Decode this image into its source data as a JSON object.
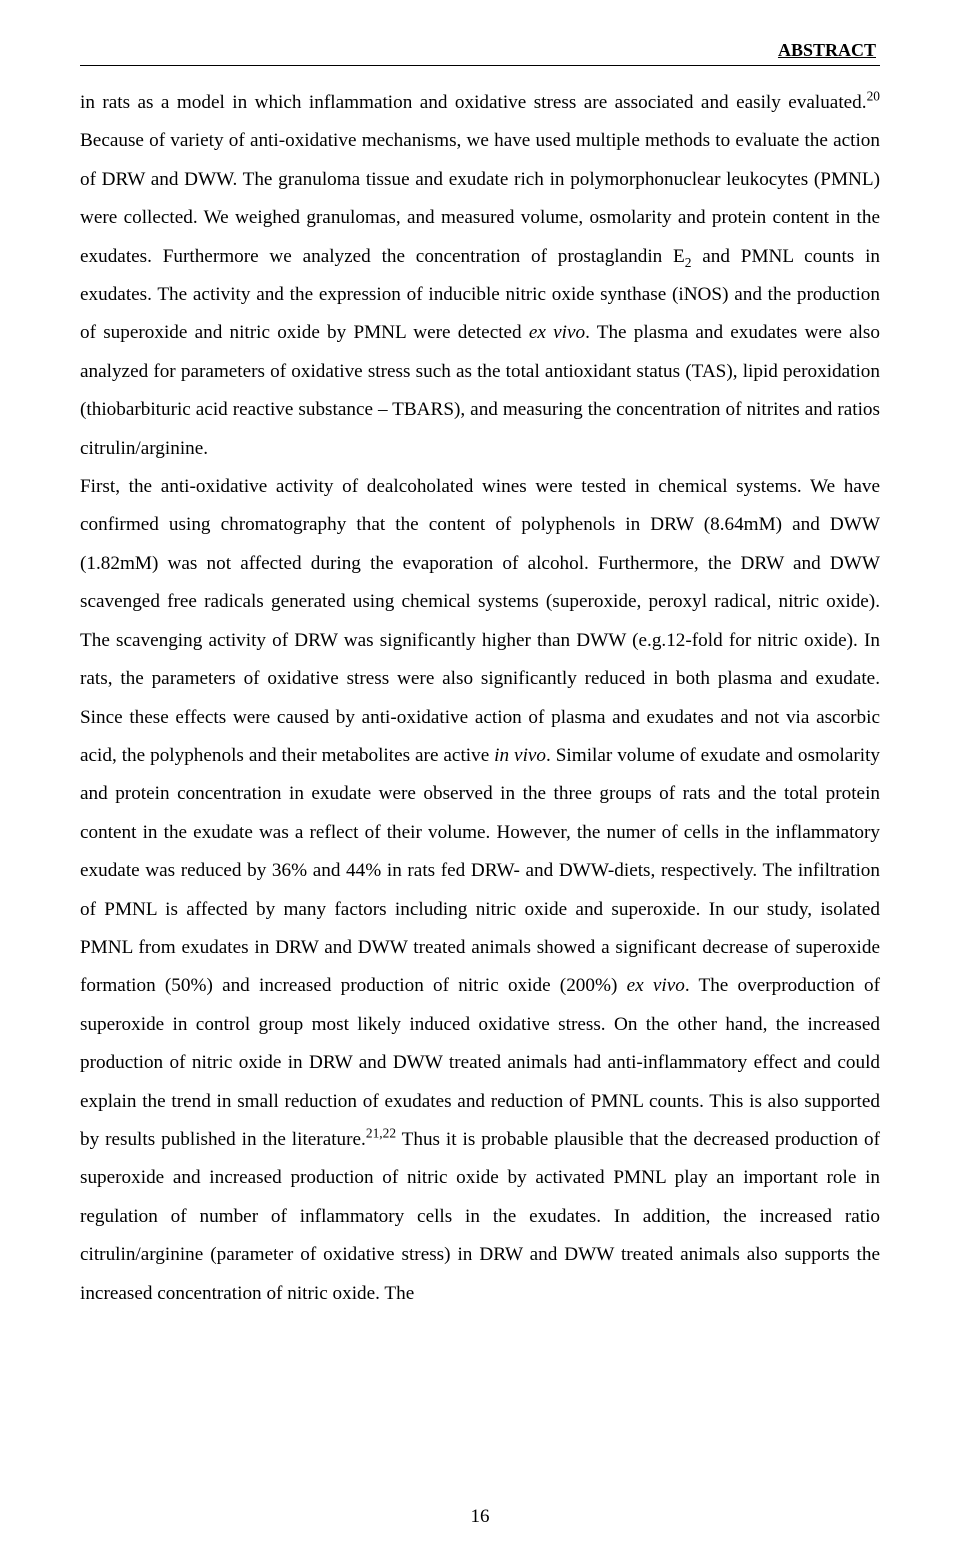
{
  "header": {
    "label": "ABSTRACT"
  },
  "body": {
    "p1_seg1": "in rats as a model in which inflammation and oxidative stress are associated and easily evaluated.",
    "sup20": "20",
    "p1_seg2": " Because of variety of anti-oxidative mechanisms, we have used multiple methods to evaluate the action of DRW and DWW. The granuloma tissue and exudate rich in polymorphonuclear leukocytes (PMNL) were collected. We weighed granulomas, and measured volume, osmolarity and protein content in the exudates. Furthermore we analyzed the concentration of prostaglandin E",
    "sub2": "2",
    "p1_seg3": " and PMNL counts in exudates. The activity and the expression of inducible nitric oxide synthase (iNOS) and the production of superoxide and nitric oxide by PMNL were detected ",
    "it_exvivo1": "ex vivo",
    "p1_seg4": ". The plasma and exudates were also analyzed for parameters of oxidative stress such as the total antioxidant status (TAS), lipid peroxidation (thiobarbituric acid reactive substance – TBARS), and measuring the concentration of nitrites and ratios citrulin/arginine.",
    "p2_seg1": "First, the anti-oxidative activity of dealcoholated wines were tested in chemical systems. We have confirmed using chromatography that the content of polyphenols in DRW (8.64mM) and DWW (1.82mM) was not affected during the evaporation of alcohol. Furthermore, the DRW and DWW scavenged free radicals generated using chemical systems (superoxide, peroxyl radical, nitric oxide). The scavenging activity of DRW was significantly higher than DWW (e.g.12-fold for nitric oxide). In rats, the parameters of oxidative stress were also significantly reduced in both plasma and exudate. Since these effects were caused by anti-oxidative action of plasma and exudates and not via ascorbic acid, the polyphenols and their metabolites are active ",
    "it_invivo": "in vivo",
    "p2_seg2": ". Similar volume of exudate and osmolarity and protein concentration in exudate were observed in the three groups of rats and the total protein content in the exudate was a reflect of their volume. However, the numer of cells in the inflammatory exudate was reduced by 36% and 44% in rats fed DRW- and DWW-diets, respectively. The infiltration of PMNL is affected by many factors including nitric oxide and superoxide. In our study, isolated PMNL from exudates in DRW and DWW treated animals showed a significant decrease of superoxide formation (50%) and increased production of nitric oxide (200%) ",
    "it_exvivo2": "ex vivo",
    "p2_seg3": ". The overproduction of superoxide in control group most likely induced oxidative stress. On the other hand, the increased production of nitric oxide in DRW and DWW treated animals had anti-inflammatory effect and could explain the trend in small reduction of exudates and reduction of PMNL counts. This is also supported by results published in the literature.",
    "sup2122": "21,22",
    "p2_seg4": " Thus it is probable plausible that the decreased production of superoxide and increased production of nitric oxide by activated PMNL play an important role in regulation of number of inflammatory cells in the exudates. In addition, the increased ratio citrulin/arginine (parameter of oxidative stress) in DRW and DWW treated animals also supports the increased concentration of nitric oxide. The"
  },
  "footer": {
    "page_number": "16"
  }
}
